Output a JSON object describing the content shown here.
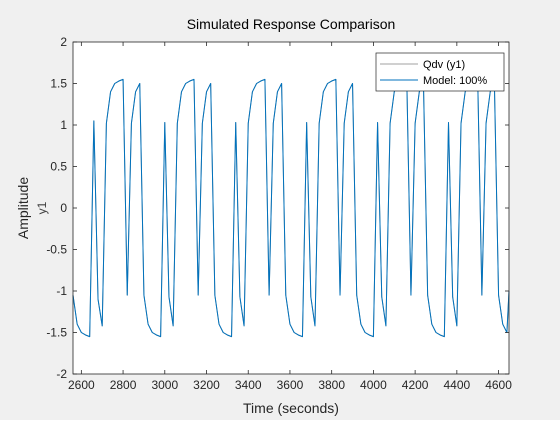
{
  "chart_data": {
    "type": "line",
    "title": "Simulated Response Comparison",
    "xlabel": "Time (seconds)",
    "ylabel": "Amplitude",
    "ylabel_sub": "y1",
    "xlim": [
      2560,
      4650
    ],
    "ylim": [
      -2,
      2
    ],
    "xticks": [
      2600,
      2800,
      3000,
      3200,
      3400,
      3600,
      3800,
      4000,
      4200,
      4400,
      4600
    ],
    "yticks": [
      -2,
      -1.5,
      -1,
      -0.5,
      0,
      0.5,
      1,
      1.5,
      2
    ],
    "grid": false,
    "legend_position": "top-right",
    "legend": [
      {
        "label": "Qdv (y1)",
        "color": "#a0a0a0"
      },
      {
        "label": "Model: 100%",
        "color": "#0072bd"
      }
    ],
    "series": [
      {
        "name": "Qdv (y1)",
        "color": "#a0a0a0",
        "x": [
          2560,
          2580,
          2600,
          2620,
          2640,
          2660,
          2680,
          2700,
          2720,
          2740,
          2760,
          2780,
          2800,
          2820,
          2840,
          2860,
          2880,
          2900,
          2920,
          2940,
          2960,
          2980,
          3000,
          3020,
          3040,
          3060,
          3080,
          3100,
          3120,
          3140,
          3160,
          3180,
          3200,
          3220,
          3240,
          3260,
          3280,
          3300,
          3320,
          3340,
          3360,
          3380,
          3400,
          3420,
          3440,
          3460,
          3480,
          3500,
          3520,
          3540,
          3560,
          3580,
          3600,
          3620,
          3640,
          3660,
          3680,
          3700,
          3720,
          3740,
          3760,
          3780,
          3800,
          3820,
          3840,
          3860,
          3880,
          3900,
          3920,
          3940,
          3960,
          3980,
          4000,
          4020,
          4040,
          4060,
          4080,
          4100,
          4120,
          4140,
          4160,
          4180,
          4200,
          4220,
          4240,
          4260,
          4280,
          4300,
          4320,
          4340,
          4360,
          4380,
          4400,
          4420,
          4440,
          4460,
          4480,
          4500,
          4520,
          4540,
          4560,
          4580,
          4600,
          4620,
          4640,
          4650
        ],
        "values": [
          -1.05,
          -1.4,
          -1.5,
          -1.53,
          -1.55,
          1.05,
          -1.1,
          -1.42,
          1.02,
          1.4,
          1.5,
          1.53,
          1.55,
          -1.05,
          1.02,
          1.4,
          1.5,
          -1.05,
          -1.4,
          -1.5,
          -1.53,
          -1.55,
          1.03,
          -1.07,
          -1.42,
          1.02,
          1.4,
          1.5,
          1.53,
          1.55,
          -1.05,
          1.02,
          1.4,
          1.5,
          -1.05,
          -1.4,
          -1.5,
          -1.53,
          -1.55,
          1.03,
          -1.07,
          -1.42,
          1.02,
          1.4,
          1.5,
          1.53,
          1.55,
          -1.05,
          1.02,
          1.4,
          1.5,
          -1.05,
          -1.4,
          -1.5,
          -1.53,
          -1.55,
          1.03,
          -1.07,
          -1.42,
          1.02,
          1.4,
          1.5,
          1.53,
          1.55,
          -1.05,
          1.02,
          1.4,
          1.5,
          -1.05,
          -1.4,
          -1.5,
          -1.53,
          -1.55,
          1.03,
          -1.07,
          -1.42,
          1.02,
          1.4,
          1.5,
          1.53,
          1.55,
          -1.05,
          1.02,
          1.4,
          1.5,
          -1.05,
          -1.4,
          -1.5,
          -1.53,
          -1.55,
          1.03,
          -1.07,
          -1.42,
          1.02,
          1.4,
          1.5,
          1.53,
          1.55,
          -1.05,
          1.02,
          1.4,
          1.5,
          -1.05,
          -1.4,
          -1.5,
          -1.0
        ]
      },
      {
        "name": "Model: 100%",
        "color": "#0072bd",
        "x": [
          2560,
          2580,
          2600,
          2620,
          2640,
          2660,
          2680,
          2700,
          2720,
          2740,
          2760,
          2780,
          2800,
          2820,
          2840,
          2860,
          2880,
          2900,
          2920,
          2940,
          2960,
          2980,
          3000,
          3020,
          3040,
          3060,
          3080,
          3100,
          3120,
          3140,
          3160,
          3180,
          3200,
          3220,
          3240,
          3260,
          3280,
          3300,
          3320,
          3340,
          3360,
          3380,
          3400,
          3420,
          3440,
          3460,
          3480,
          3500,
          3520,
          3540,
          3560,
          3580,
          3600,
          3620,
          3640,
          3660,
          3680,
          3700,
          3720,
          3740,
          3760,
          3780,
          3800,
          3820,
          3840,
          3860,
          3880,
          3900,
          3920,
          3940,
          3960,
          3980,
          4000,
          4020,
          4040,
          4060,
          4080,
          4100,
          4120,
          4140,
          4160,
          4180,
          4200,
          4220,
          4240,
          4260,
          4280,
          4300,
          4320,
          4340,
          4360,
          4380,
          4400,
          4420,
          4440,
          4460,
          4480,
          4500,
          4520,
          4540,
          4560,
          4580,
          4600,
          4620,
          4640,
          4650
        ],
        "values": [
          -1.05,
          -1.4,
          -1.5,
          -1.53,
          -1.55,
          1.05,
          -1.1,
          -1.42,
          1.02,
          1.4,
          1.5,
          1.53,
          1.55,
          -1.05,
          1.02,
          1.4,
          1.5,
          -1.05,
          -1.4,
          -1.5,
          -1.53,
          -1.55,
          1.03,
          -1.07,
          -1.42,
          1.02,
          1.4,
          1.5,
          1.53,
          1.55,
          -1.05,
          1.02,
          1.4,
          1.5,
          -1.05,
          -1.4,
          -1.5,
          -1.53,
          -1.55,
          1.03,
          -1.07,
          -1.42,
          1.02,
          1.4,
          1.5,
          1.53,
          1.55,
          -1.05,
          1.02,
          1.4,
          1.5,
          -1.05,
          -1.4,
          -1.5,
          -1.53,
          -1.55,
          1.03,
          -1.07,
          -1.42,
          1.02,
          1.4,
          1.5,
          1.53,
          1.55,
          -1.05,
          1.02,
          1.4,
          1.5,
          -1.05,
          -1.4,
          -1.5,
          -1.53,
          -1.55,
          1.03,
          -1.07,
          -1.42,
          1.02,
          1.4,
          1.5,
          1.53,
          1.55,
          -1.05,
          1.02,
          1.4,
          1.5,
          -1.05,
          -1.4,
          -1.5,
          -1.53,
          -1.55,
          1.03,
          -1.07,
          -1.42,
          1.02,
          1.4,
          1.5,
          1.53,
          1.55,
          -1.05,
          1.02,
          1.4,
          1.5,
          -1.05,
          -1.4,
          -1.5,
          -1.0
        ]
      }
    ]
  }
}
